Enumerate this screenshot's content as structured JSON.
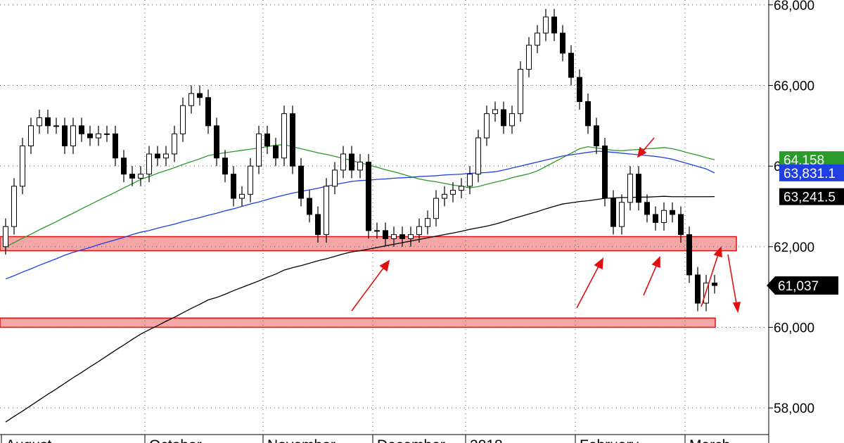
{
  "chart_data": {
    "type": "candlestick",
    "categories": [
      "August",
      null,
      null,
      null,
      null,
      null,
      null,
      null,
      null,
      null,
      null,
      null,
      null,
      null,
      null,
      null,
      null,
      "October",
      null,
      null,
      null,
      null,
      null,
      null,
      null,
      null,
      null,
      null,
      null,
      null,
      null,
      "November",
      null,
      null,
      null,
      null,
      null,
      null,
      null,
      null,
      null,
      null,
      null,
      null,
      "December",
      null,
      null,
      null,
      null,
      null,
      null,
      null,
      null,
      null,
      null,
      "2018",
      null,
      null,
      null,
      null,
      null,
      null,
      null,
      null,
      null,
      null,
      null,
      null,
      "February",
      null,
      null,
      null,
      null,
      null,
      null,
      null,
      null,
      null,
      null,
      null,
      null,
      "March",
      null,
      null,
      null
    ],
    "open": [
      62000,
      62500,
      63500,
      64500,
      65000,
      65200,
      65000,
      65000,
      64500,
      65000,
      64800,
      64700,
      64800,
      64800,
      64200,
      63800,
      63700,
      63800,
      64300,
      64200,
      64300,
      64800,
      65500,
      65800,
      65700,
      65000,
      64200,
      63800,
      63200,
      63300,
      64000,
      64800,
      64500,
      64200,
      65300,
      64000,
      63200,
      62800,
      62300,
      63500,
      63900,
      64300,
      63900,
      64100,
      62400,
      62400,
      62200,
      62300,
      62200,
      62300,
      62500,
      62700,
      63200,
      63300,
      63400,
      63500,
      63800,
      64700,
      65300,
      65400,
      65000,
      65300,
      66400,
      67000,
      67300,
      67700,
      67300,
      66800,
      66200,
      65600,
      65000,
      64500,
      63200,
      62500,
      63100,
      63800,
      63100,
      62800,
      62600,
      62900,
      62800,
      62300,
      61300,
      60600,
      61100
    ],
    "high": [
      62700,
      63700,
      64700,
      65200,
      65400,
      65400,
      65200,
      65200,
      65200,
      65200,
      65000,
      65000,
      65000,
      65000,
      64400,
      64000,
      64000,
      64500,
      64500,
      64500,
      65000,
      65700,
      66000,
      66000,
      65900,
      65200,
      64400,
      64000,
      63500,
      64200,
      65000,
      65000,
      64700,
      65500,
      65500,
      64200,
      63400,
      63000,
      63700,
      64100,
      64500,
      64500,
      64300,
      64300,
      62600,
      62600,
      62500,
      62500,
      62500,
      62700,
      62900,
      63400,
      63500,
      63600,
      63700,
      64000,
      64900,
      65500,
      65600,
      65600,
      65500,
      66600,
      67200,
      67500,
      67900,
      67900,
      67500,
      67000,
      66400,
      65800,
      65200,
      64700,
      63400,
      63300,
      64000,
      64000,
      63300,
      63000,
      63100,
      63100,
      63000,
      62500,
      61500,
      61300,
      61300
    ],
    "low": [
      61800,
      62300,
      63300,
      64300,
      64800,
      64800,
      64800,
      64300,
      64300,
      64600,
      64500,
      64500,
      64600,
      64000,
      63600,
      63500,
      63500,
      63600,
      64000,
      64000,
      64100,
      64600,
      65300,
      65500,
      64800,
      64000,
      63600,
      63000,
      63000,
      63100,
      63800,
      64300,
      64000,
      64000,
      63800,
      63000,
      62600,
      62100,
      62100,
      63300,
      63700,
      63700,
      63700,
      62200,
      62200,
      62000,
      62000,
      62000,
      62000,
      62100,
      62300,
      62500,
      63000,
      63100,
      63200,
      63300,
      63600,
      64500,
      65100,
      64800,
      64800,
      65100,
      66200,
      66800,
      67100,
      67100,
      66600,
      66000,
      65400,
      64800,
      64300,
      63000,
      62300,
      62300,
      62900,
      62900,
      62600,
      62400,
      62400,
      62600,
      62100,
      61100,
      60400,
      60400,
      60837
    ],
    "close": [
      62500,
      63500,
      64500,
      65000,
      65200,
      65000,
      65000,
      64500,
      65000,
      64800,
      64700,
      64800,
      64800,
      64200,
      63800,
      63700,
      63800,
      64300,
      64200,
      64300,
      64800,
      65500,
      65800,
      65700,
      65000,
      64200,
      63800,
      63200,
      63300,
      64000,
      64800,
      64500,
      64200,
      65300,
      64000,
      63200,
      62800,
      62300,
      63500,
      63900,
      64300,
      63900,
      64100,
      62400,
      62400,
      62200,
      62300,
      62200,
      62300,
      62500,
      62700,
      63200,
      63300,
      63400,
      63500,
      63800,
      64700,
      65300,
      65400,
      65000,
      65300,
      66400,
      67000,
      67300,
      67700,
      67300,
      66800,
      66200,
      65600,
      65000,
      64500,
      63200,
      62500,
      63100,
      63800,
      63100,
      62800,
      62600,
      62900,
      62800,
      62300,
      61300,
      60600,
      61100,
      61037
    ],
    "last_label": {
      "value": 61037,
      "label": "61,037"
    },
    "up_color": "#ffffff",
    "down_color": "#000000",
    "series": [
      {
        "color": "#2a9a2a",
        "last_label": {
          "value": 64158,
          "label": "64,158"
        },
        "values": [
          62000,
          62100,
          62210,
          62310,
          62420,
          62520,
          62620,
          62730,
          62830,
          62940,
          63040,
          63150,
          63250,
          63350,
          63460,
          63560,
          63670,
          63740,
          63820,
          63890,
          63960,
          64040,
          64110,
          64180,
          64260,
          64300,
          64330,
          64360,
          64390,
          64420,
          64450,
          64480,
          64520,
          64530,
          64480,
          64430,
          64380,
          64330,
          64290,
          64240,
          64190,
          64140,
          64080,
          64030,
          63970,
          63910,
          63860,
          63800,
          63740,
          63680,
          63640,
          63610,
          63570,
          63530,
          63500,
          63460,
          63490,
          63550,
          63600,
          63650,
          63710,
          63760,
          63810,
          63880,
          63990,
          64100,
          64210,
          64320,
          64430,
          64480,
          64450,
          64420,
          64390,
          64380,
          64400,
          64410,
          64430,
          64440,
          64460,
          64430,
          64380,
          64320,
          64270,
          64210,
          64158
        ]
      },
      {
        "color": "#1f3fe0",
        "last_label": {
          "value": 63831.1,
          "label": "63,831.1"
        },
        "values": [
          61200,
          61280,
          61370,
          61450,
          61540,
          61620,
          61700,
          61790,
          61860,
          61920,
          61980,
          62050,
          62110,
          62170,
          62230,
          62300,
          62360,
          62400,
          62460,
          62510,
          62560,
          62620,
          62670,
          62720,
          62780,
          62830,
          62890,
          62940,
          63000,
          63060,
          63110,
          63170,
          63230,
          63280,
          63330,
          63370,
          63410,
          63450,
          63500,
          63540,
          63580,
          63620,
          63640,
          63650,
          63670,
          63680,
          63700,
          63710,
          63720,
          63740,
          63750,
          63760,
          63780,
          63790,
          63800,
          63820,
          63830,
          63840,
          63860,
          63900,
          63950,
          64000,
          64050,
          64100,
          64150,
          64200,
          64250,
          64280,
          64310,
          64340,
          64370,
          64360,
          64340,
          64320,
          64300,
          64280,
          64260,
          64240,
          64210,
          64170,
          64110,
          64050,
          63990,
          63930,
          63831.1
        ]
      },
      {
        "color": "#000000",
        "last_label": {
          "value": 63241.5,
          "label": "63,241.5"
        },
        "values": [
          57650,
          57790,
          57920,
          58060,
          58200,
          58340,
          58470,
          58610,
          58750,
          58880,
          59020,
          59150,
          59290,
          59430,
          59560,
          59700,
          59830,
          59940,
          60040,
          60150,
          60250,
          60360,
          60470,
          60570,
          60680,
          60740,
          60820,
          60910,
          60990,
          61070,
          61150,
          61240,
          61320,
          61420,
          61480,
          61530,
          61590,
          61650,
          61700,
          61760,
          61820,
          61870,
          61900,
          61940,
          61980,
          62020,
          62060,
          62100,
          62140,
          62180,
          62220,
          62260,
          62300,
          62340,
          62380,
          62430,
          62470,
          62510,
          62560,
          62620,
          62690,
          62750,
          62810,
          62870,
          62940,
          63000,
          63060,
          63090,
          63120,
          63140,
          63170,
          63200,
          63210,
          63220,
          63220,
          63230,
          63230,
          63240,
          63250,
          63240,
          63240,
          63240,
          63240,
          63240,
          63241.5
        ]
      }
    ],
    "bands": [
      {
        "from": 61900,
        "to": 62250,
        "color": "#f4a6a6"
      },
      {
        "from": 60000,
        "to": 60230,
        "color": "#f4a6a6"
      }
    ],
    "ylim": [
      57130,
      68120
    ],
    "yticks": [
      {
        "value": 58000,
        "label": "58,000"
      },
      {
        "value": 60000,
        "label": "60,000"
      },
      {
        "value": 62000,
        "label": "62,000"
      },
      {
        "value": 64000,
        "label": "64,000"
      },
      {
        "value": 66000,
        "label": "66,000"
      },
      {
        "value": 68000,
        "label": "68,000"
      }
    ],
    "grid": true
  }
}
